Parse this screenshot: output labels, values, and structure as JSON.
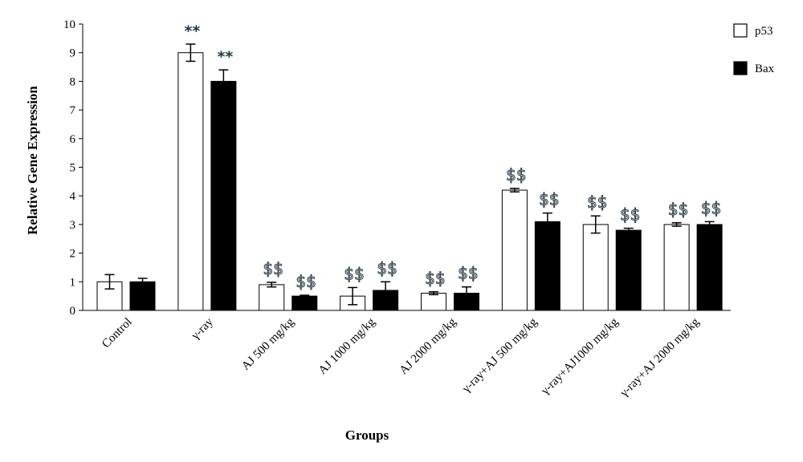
{
  "chart_data": {
    "type": "bar",
    "xlabel": "Groups",
    "ylabel": "Relative Gene Expression",
    "ylim": [
      0,
      10
    ],
    "yticks": [
      "0",
      "1",
      "2",
      "3",
      "4",
      "5",
      "6",
      "7",
      "8",
      "9",
      "10"
    ],
    "grid": false,
    "legend_position": "top-right",
    "categories": [
      "Control",
      "γ-ray",
      "AJ 500 mg/kg",
      "AJ 1000 mg/kg",
      "AJ 2000 mg/kg",
      "γ-ray+AJ 500 mg/kg",
      "γ-ray+AJ1000 mg/kg",
      "γ-ray+AJ 2000 mg/kg"
    ],
    "series": [
      {
        "name": "p53",
        "color": "#ffffff",
        "values": [
          1.0,
          9.0,
          0.9,
          0.5,
          0.6,
          4.2,
          3.0,
          3.0
        ],
        "error": [
          0.25,
          0.3,
          0.08,
          0.3,
          0.05,
          0.06,
          0.3,
          0.06
        ],
        "annotations": [
          "",
          "**",
          "$$",
          "$$",
          "$$",
          "$$",
          "$$",
          "$$"
        ]
      },
      {
        "name": "Bax",
        "color": "#000000",
        "values": [
          1.0,
          8.0,
          0.5,
          0.7,
          0.6,
          3.1,
          2.8,
          3.0
        ],
        "error": [
          0.12,
          0.4,
          0.03,
          0.3,
          0.22,
          0.3,
          0.07,
          0.1
        ],
        "annotations": [
          "",
          "**",
          "$$",
          "$$",
          "$$",
          "$$",
          "$$",
          "$$"
        ]
      }
    ]
  }
}
